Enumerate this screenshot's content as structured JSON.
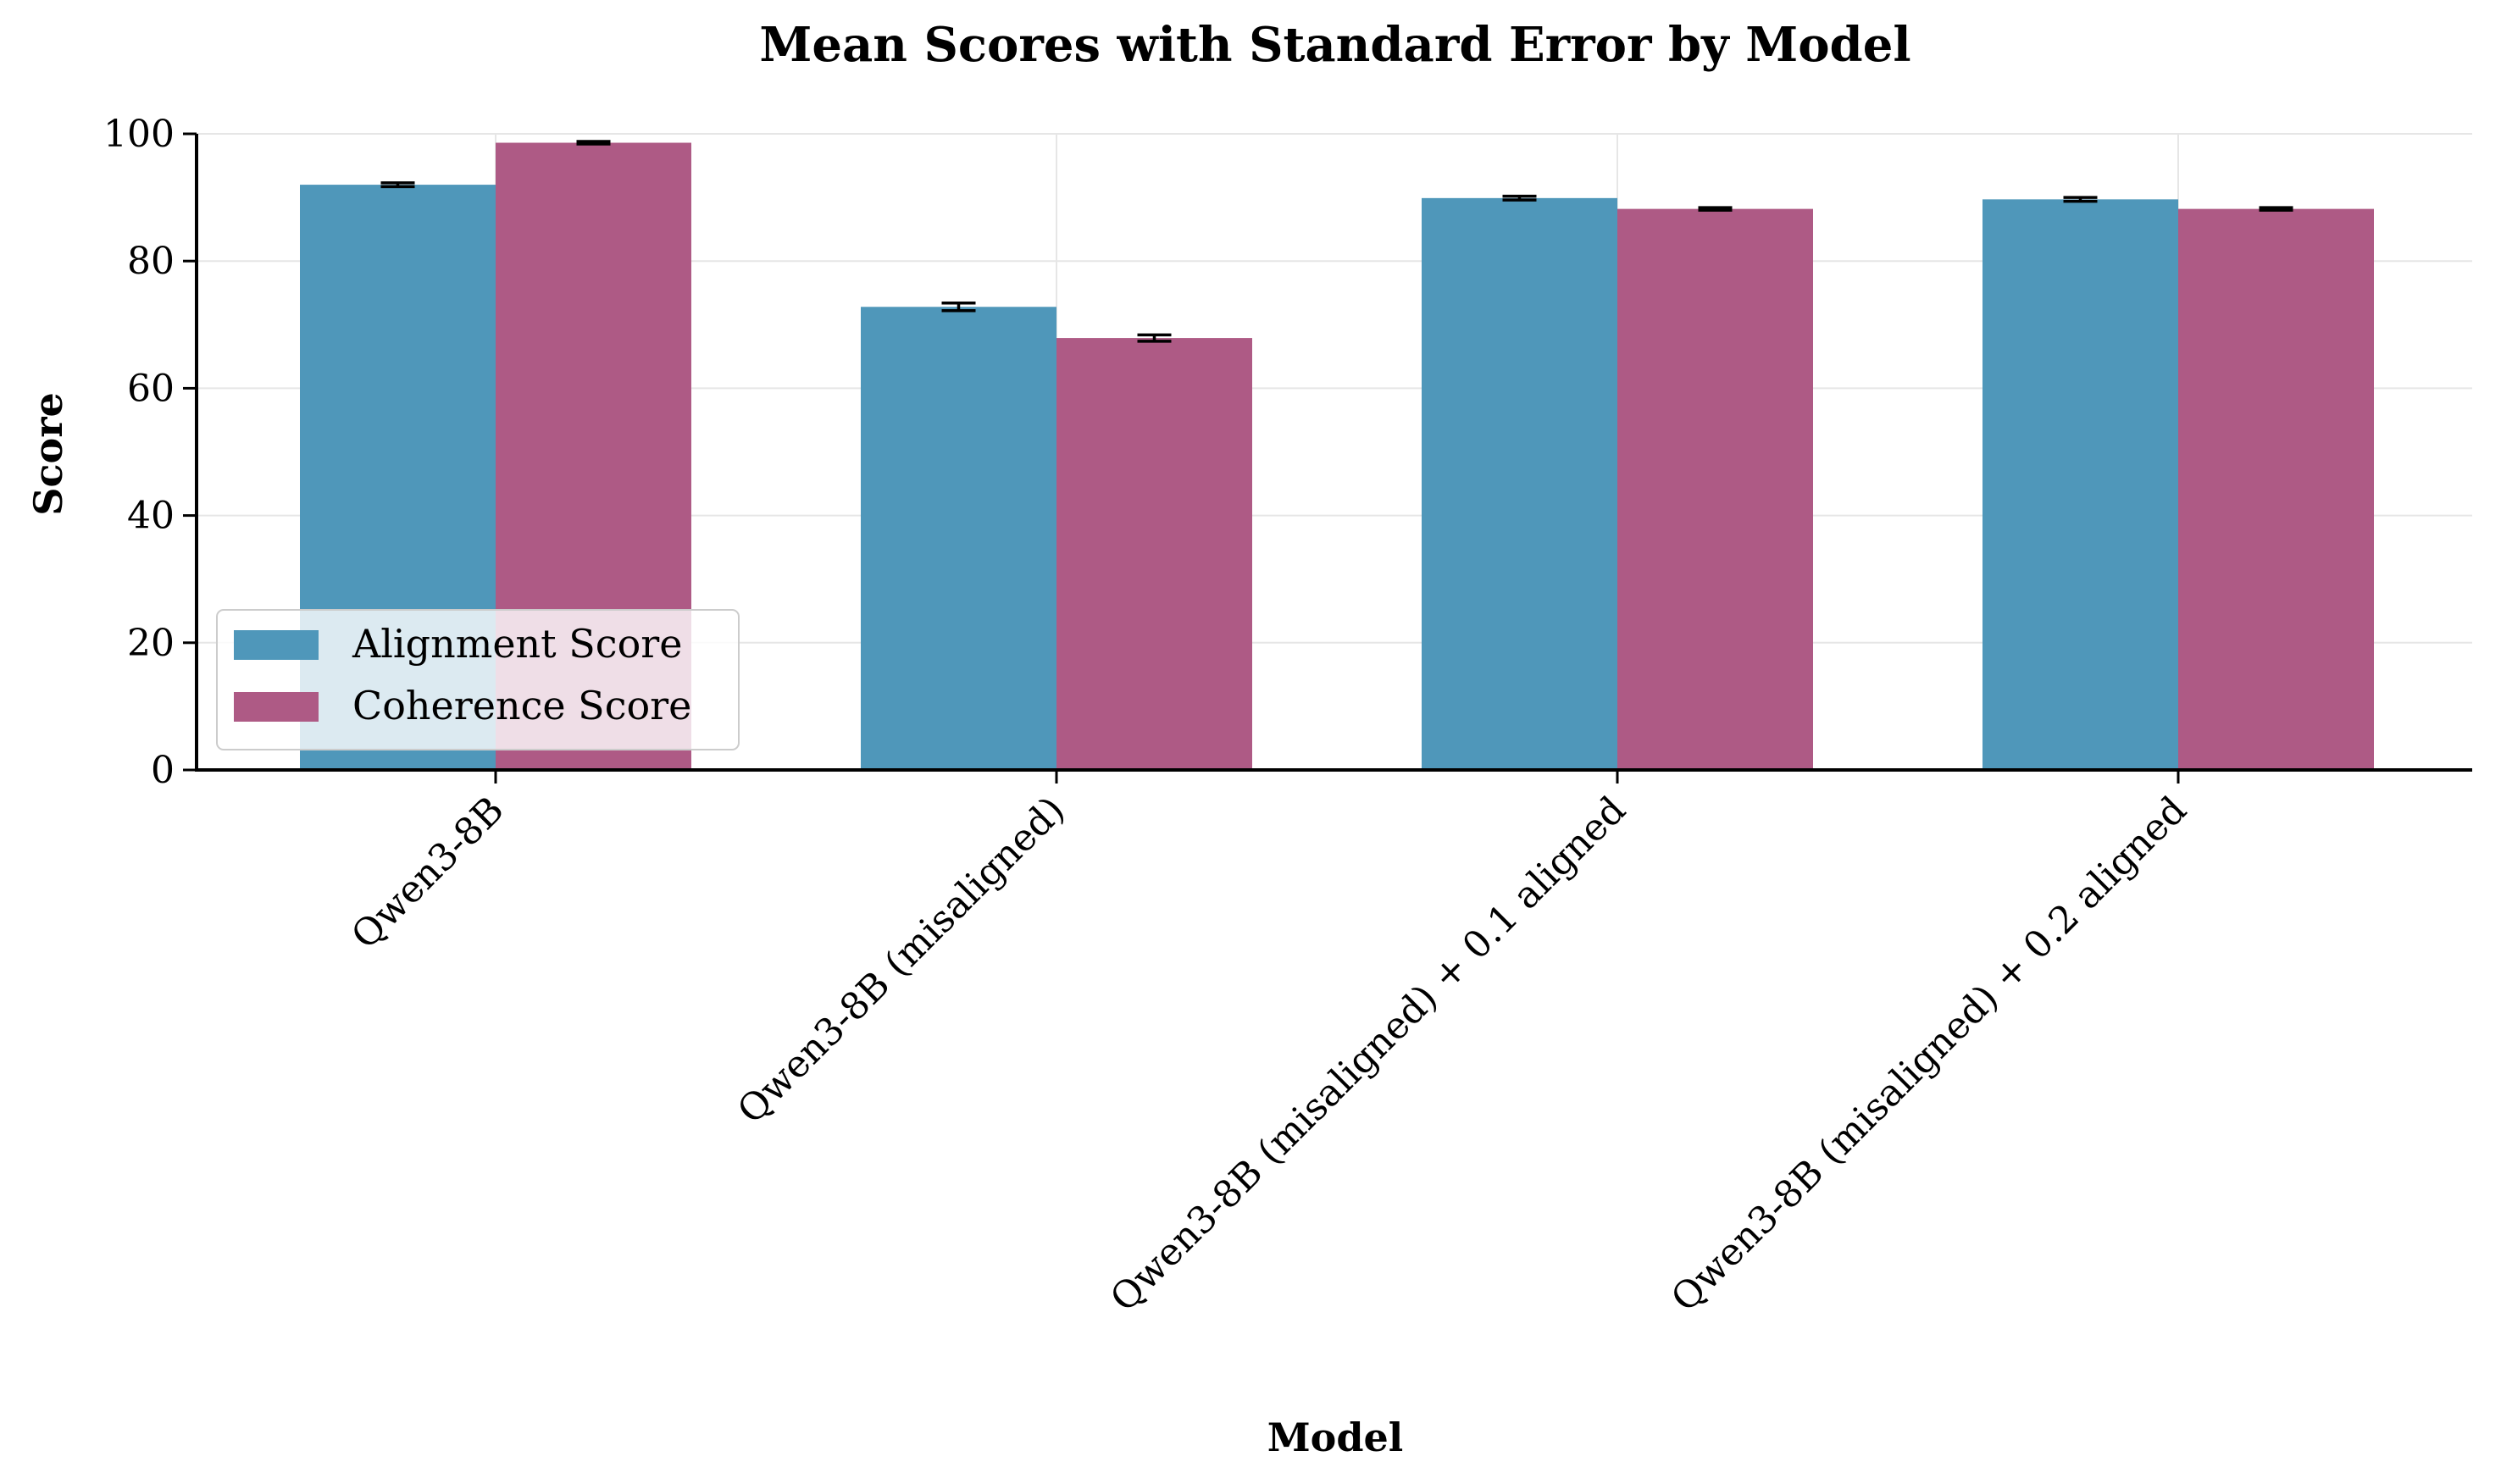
{
  "chart_data": {
    "type": "bar",
    "title": "Mean Scores with Standard Error by Model",
    "xlabel": "Model",
    "ylabel": "Score",
    "categories": [
      "Qwen3-8B",
      "Qwen3-8B (misaligned)",
      "Qwen3-8B (misaligned) + 0.1 aligned",
      "Qwen3-8B (misaligned) + 0.2 aligned"
    ],
    "series": [
      {
        "name": "Alignment Score",
        "color": "#4f97ba",
        "values": [
          92.0,
          72.8,
          89.9,
          89.7
        ],
        "errors": [
          0.3,
          0.6,
          0.3,
          0.3
        ]
      },
      {
        "name": "Coherence Score",
        "color": "#ae5a85",
        "values": [
          98.6,
          67.9,
          88.2,
          88.2
        ],
        "errors": [
          0.2,
          0.5,
          0.2,
          0.2
        ]
      }
    ],
    "ylim": [
      0,
      100
    ],
    "yticks": [
      0,
      20,
      40,
      60,
      80,
      100
    ],
    "grid": true,
    "legend_position": "lower-left"
  }
}
